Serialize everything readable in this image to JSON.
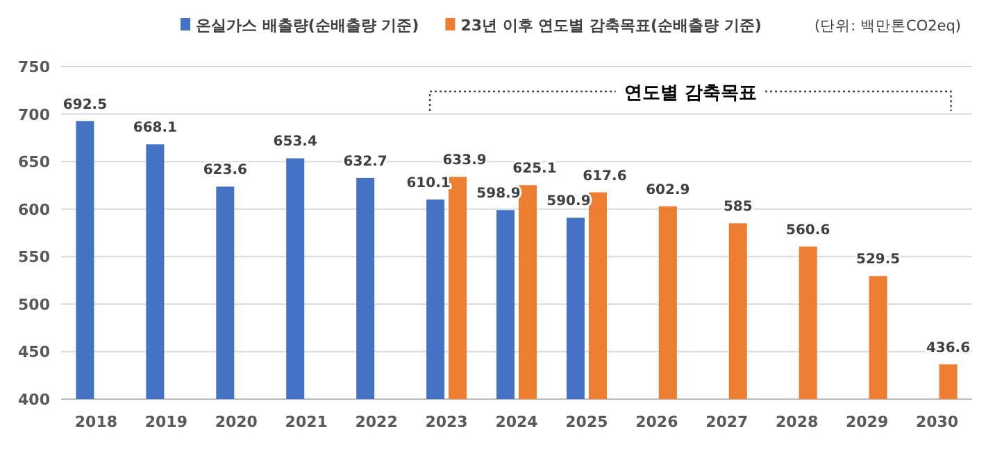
{
  "chart_data": {
    "type": "bar",
    "categories": [
      "2018",
      "2019",
      "2020",
      "2021",
      "2022",
      "2023",
      "2024",
      "2025",
      "2026",
      "2027",
      "2028",
      "2029",
      "2030"
    ],
    "series": [
      {
        "name": "온실가스 배출량(순배출량 기준)",
        "color": "#4472c4",
        "values": [
          692.5,
          668.1,
          623.6,
          653.4,
          632.7,
          610.1,
          598.9,
          590.9,
          null,
          null,
          null,
          null,
          null
        ]
      },
      {
        "name": "23년 이후 연도별 감축목표(순배출량 기준)",
        "color": "#ed7d31",
        "values": [
          null,
          null,
          null,
          null,
          null,
          633.9,
          625.1,
          617.6,
          602.9,
          585,
          560.6,
          529.5,
          436.6
        ]
      }
    ],
    "ylim": [
      400,
      750
    ],
    "yticks": [
      400,
      450,
      500,
      550,
      600,
      650,
      700,
      750
    ],
    "grid": "y",
    "legend": "top",
    "data_labels": true,
    "annotations": [
      "(단위: 백만톤CO2eq)",
      "연도별 감축목표"
    ]
  }
}
